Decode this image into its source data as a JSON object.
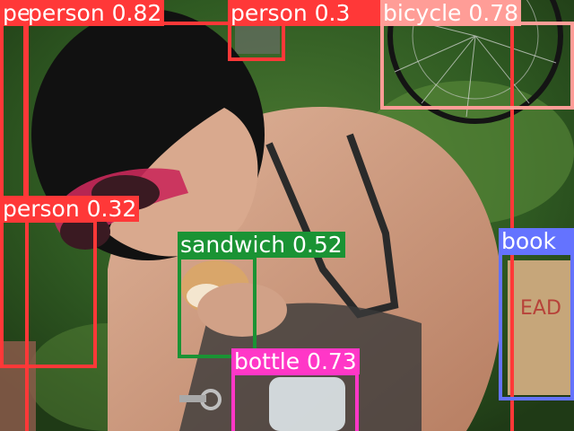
{
  "image": {
    "description_free": true
  },
  "detections": [
    {
      "id": "person-1",
      "label": "person",
      "score": "0.82",
      "color": "#ff3838"
    },
    {
      "id": "person-2",
      "label": "person",
      "score": "0.3",
      "color": "#ff3838"
    },
    {
      "id": "person-3",
      "label": "person",
      "score": "0.32",
      "color": "#ff3838"
    },
    {
      "id": "person-4",
      "label": "pe",
      "score": "",
      "color": "#ff3838"
    },
    {
      "id": "bicycle-1",
      "label": "bicycle",
      "score": "0.78",
      "color": "#ff9d97"
    },
    {
      "id": "sandwich-1",
      "label": "sandwich",
      "score": "0.52",
      "color": "#1a9334"
    },
    {
      "id": "bottle-1",
      "label": "bottle",
      "score": "0.73",
      "color": "#ff37c7"
    },
    {
      "id": "book-1",
      "label": "book",
      "score": "",
      "color": "#6473ff"
    }
  ],
  "text": {
    "person-1": "person 0.82",
    "person-2": "person 0.3",
    "person-3": "person 0.32",
    "person-4": "pe",
    "bicycle-1": "bicycle 0.78",
    "sandwich-1": "sandwich 0.52",
    "bottle-1": "bottle 0.73",
    "book-1": "book"
  }
}
